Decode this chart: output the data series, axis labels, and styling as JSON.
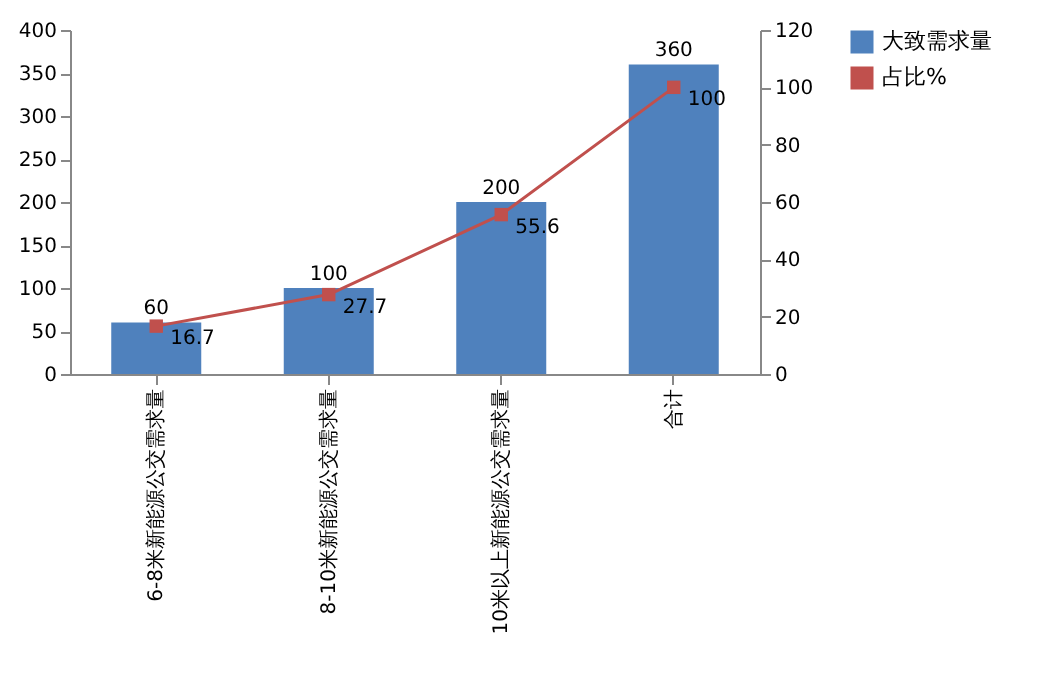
{
  "chart_data": {
    "type": "bar",
    "categories": [
      "6-8米新能源公交需求量",
      "8-10米新能源公交需求量",
      "10米以上新能源公交需求量",
      "合计"
    ],
    "series": [
      {
        "name": "大致需求量",
        "color": "#4f81bd",
        "values": [
          60,
          100,
          200,
          360
        ]
      },
      {
        "name": "占比%",
        "type": "line",
        "axis": "y2",
        "color": "#c0504d",
        "marker": "square",
        "values": [
          16.7,
          27.7,
          55.6,
          100
        ]
      }
    ],
    "ylim": [
      0,
      400
    ],
    "yticks": [
      0,
      50,
      100,
      150,
      200,
      250,
      300,
      350,
      400
    ],
    "y2lim": [
      0,
      120
    ],
    "y2ticks": [
      0,
      20,
      40,
      60,
      80,
      100,
      120
    ],
    "data_labels": true,
    "legend": "right",
    "grid": false
  }
}
